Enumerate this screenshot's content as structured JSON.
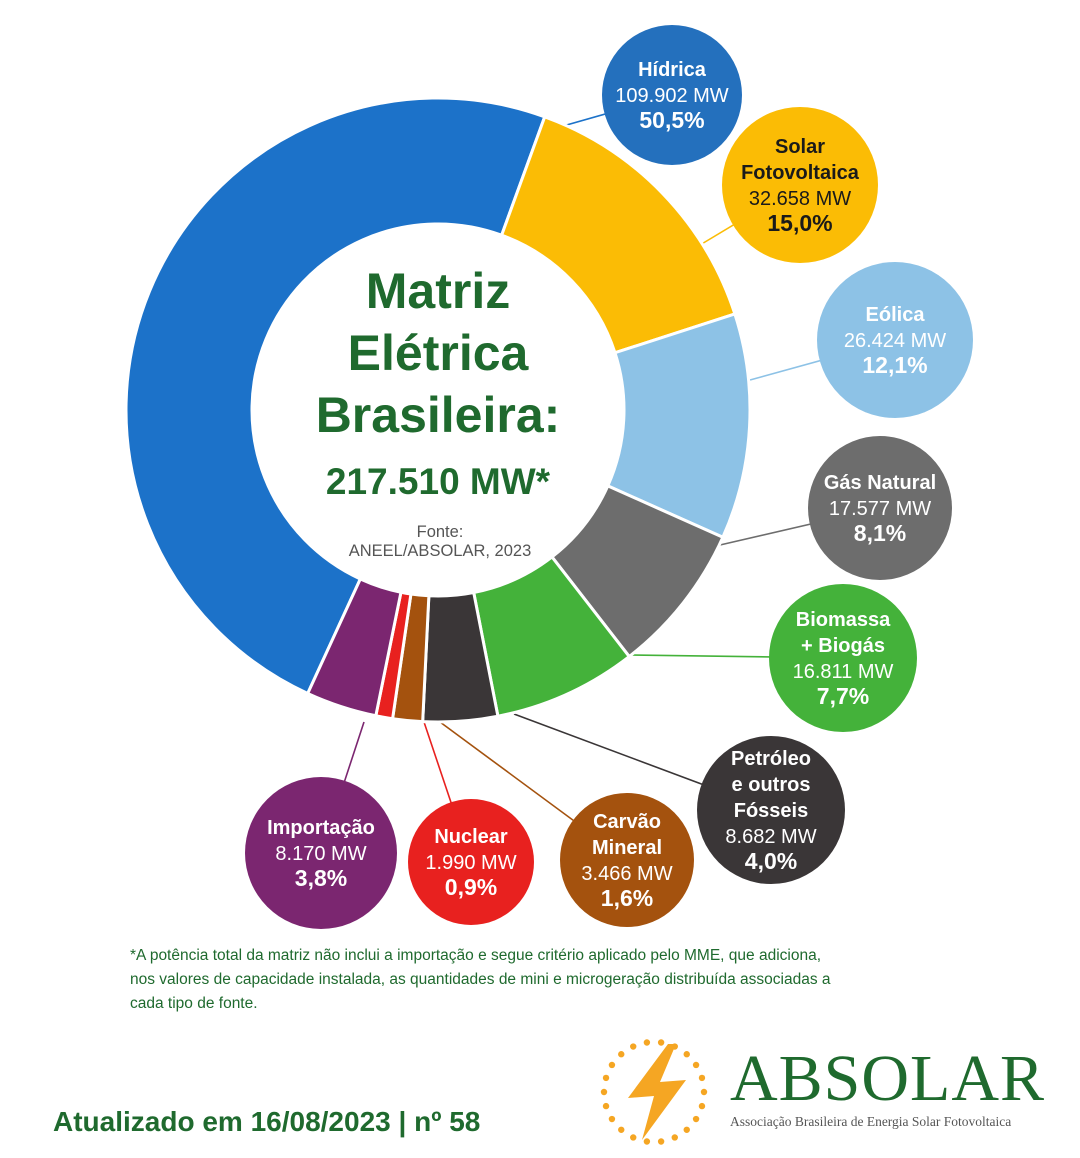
{
  "chart_data": {
    "type": "pie",
    "title_lines": [
      "Matriz",
      "Elétrica",
      "Brasileira:"
    ],
    "total": "217.510 MW*",
    "source_lines": [
      "Fonte:",
      "ANEEL/ABSOLAR, 2023"
    ],
    "slices": [
      {
        "name_lines": [
          "Hídrica"
        ],
        "mw": "109.902 MW",
        "pct": "50,5%",
        "value": 50.5,
        "color": "#1c72c9",
        "bubble_color": "#2470bd",
        "text_color": "#ffffff"
      },
      {
        "name_lines": [
          "Solar",
          "Fotovoltaica"
        ],
        "mw": "32.658 MW",
        "pct": "15,0%",
        "value": 15.0,
        "color": "#fbbc05",
        "bubble_color": "#fbbc05",
        "text_color": "#1a1a1a"
      },
      {
        "name_lines": [
          "Eólica"
        ],
        "mw": "26.424 MW",
        "pct": "12,1%",
        "value": 12.1,
        "color": "#8dc2e6",
        "bubble_color": "#8dc2e6",
        "text_color": "#ffffff"
      },
      {
        "name_lines": [
          "Gás Natural"
        ],
        "mw": "17.577 MW",
        "pct": "8,1%",
        "value": 8.1,
        "color": "#6d6d6d",
        "bubble_color": "#6d6d6d",
        "text_color": "#ffffff"
      },
      {
        "name_lines": [
          "Biomassa",
          "+ Biogás"
        ],
        "mw": "16.811 MW",
        "pct": "7,7%",
        "value": 7.7,
        "color": "#44b23a",
        "bubble_color": "#44b23a",
        "text_color": "#ffffff"
      },
      {
        "name_lines": [
          "Petróleo",
          "e outros",
          "Fósseis"
        ],
        "mw": "8.682 MW",
        "pct": "4,0%",
        "value": 4.0,
        "color": "#3a3637",
        "bubble_color": "#3a3637",
        "text_color": "#ffffff"
      },
      {
        "name_lines": [
          "Carvão",
          "Mineral"
        ],
        "mw": "3.466 MW",
        "pct": "1,6%",
        "value": 1.6,
        "color": "#a4520e",
        "bubble_color": "#a4520e",
        "text_color": "#ffffff"
      },
      {
        "name_lines": [
          "Nuclear"
        ],
        "mw": "1.990 MW",
        "pct": "0,9%",
        "value": 0.9,
        "color": "#e8211f",
        "bubble_color": "#e8211f",
        "text_color": "#ffffff"
      },
      {
        "name_lines": [
          "Importação"
        ],
        "mw": "8.170 MW",
        "pct": "3,8%",
        "value": 3.8,
        "color": "#7b2670",
        "bubble_color": "#7b2670",
        "text_color": "#ffffff"
      }
    ]
  },
  "footnote_lines": [
    "*A potência total da matriz não inclui a importação e segue critério aplicado pelo MME, que adiciona,",
    "nos valores de capacidade instalada, as quantidades de mini e microgeração distribuída associadas a",
    "cada tipo de fonte."
  ],
  "updated": "Atualizado em 16/08/2023 | nº 58",
  "logo": {
    "wordmark": "ABSOLAR",
    "subtitle": "Associação Brasileira de Energia Solar Fotovoltaica"
  },
  "colors": {
    "title_green": "#1f6a2e",
    "sun_orange": "#f5a623"
  }
}
